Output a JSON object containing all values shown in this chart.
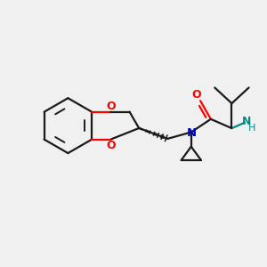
{
  "background_color": "#f0f0f0",
  "bond_color": "#1a1a1a",
  "O_color": "#ff0000",
  "N_color": "#0000cc",
  "NH_color": "#008b8b",
  "figsize": [
    3.0,
    3.0
  ],
  "dpi": 100,
  "xlim": [
    0,
    10
  ],
  "ylim": [
    0,
    10
  ]
}
